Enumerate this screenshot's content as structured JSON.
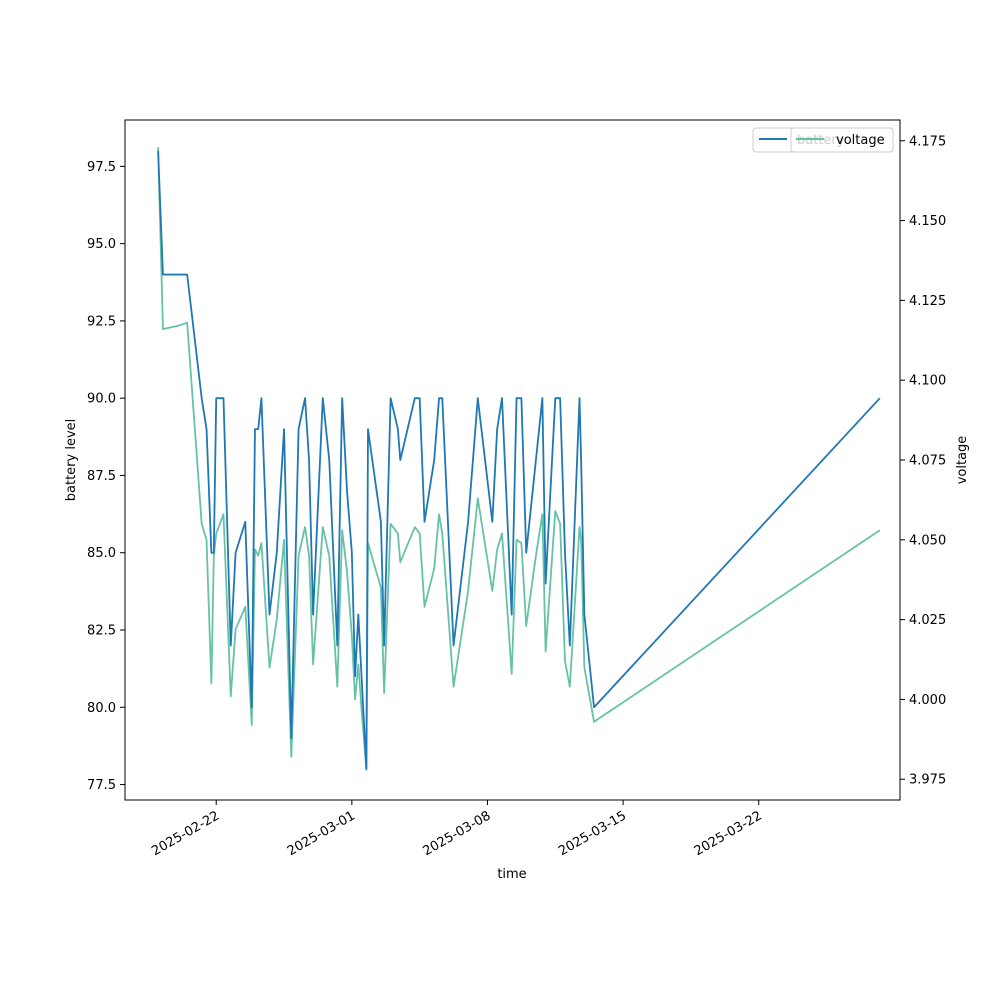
{
  "chart_data": {
    "type": "line",
    "title": "",
    "xlabel": "time",
    "ylabel_left": "battery level",
    "ylabel_right": "voltage",
    "x_ticks": [
      "2025-02-22",
      "2025-03-01",
      "2025-03-08",
      "2025-03-15",
      "2025-03-22"
    ],
    "y_left_ticks": [
      "77.5",
      "80.0",
      "82.5",
      "85.0",
      "87.5",
      "90.0",
      "92.5",
      "95.0",
      "97.5"
    ],
    "y_right_ticks": [
      "3.975",
      "4.000",
      "4.025",
      "4.050",
      "4.075",
      "4.100",
      "4.125",
      "4.150",
      "4.175"
    ],
    "ylim_left": [
      77.0,
      99.0
    ],
    "ylim_right": [
      3.9685,
      4.1815
    ],
    "xlim": [
      "2025-02-17 07:00",
      "2025-03-29 07:00"
    ],
    "legend_placement": "top-right",
    "grid": false,
    "series": [
      {
        "name": "battery",
        "axis": "left",
        "color": "#1f77b4",
        "points": [
          [
            "2025-02-19 00:00",
            98.0
          ],
          [
            "2025-02-19 06:00",
            94.0
          ],
          [
            "2025-02-20 00:00",
            94.0
          ],
          [
            "2025-02-20 12:00",
            94.0
          ],
          [
            "2025-02-21 06:00",
            90.0
          ],
          [
            "2025-02-21 12:00",
            89.0
          ],
          [
            "2025-02-21 18:00",
            85.0
          ],
          [
            "2025-02-21 21:00",
            85.0
          ],
          [
            "2025-02-22 00:00",
            90.0
          ],
          [
            "2025-02-22 09:00",
            90.0
          ],
          [
            "2025-02-22 18:00",
            82.0
          ],
          [
            "2025-02-23 00:00",
            85.0
          ],
          [
            "2025-02-23 12:00",
            86.0
          ],
          [
            "2025-02-23 20:00",
            80.0
          ],
          [
            "2025-02-24 00:00",
            89.0
          ],
          [
            "2025-02-24 04:00",
            89.0
          ],
          [
            "2025-02-24 08:00",
            90.0
          ],
          [
            "2025-02-24 18:00",
            83.0
          ],
          [
            "2025-02-25 03:00",
            85.0
          ],
          [
            "2025-02-25 12:00",
            89.0
          ],
          [
            "2025-02-25 21:00",
            79.0
          ],
          [
            "2025-02-26 06:00",
            89.0
          ],
          [
            "2025-02-26 14:00",
            90.0
          ],
          [
            "2025-02-26 19:00",
            88.0
          ],
          [
            "2025-02-27 00:00",
            83.0
          ],
          [
            "2025-02-27 12:00",
            90.0
          ],
          [
            "2025-02-27 20:00",
            88.0
          ],
          [
            "2025-02-28 06:00",
            82.0
          ],
          [
            "2025-02-28 12:00",
            90.0
          ],
          [
            "2025-02-28 18:00",
            87.0
          ],
          [
            "2025-02-29 00:00",
            85.0
          ],
          [
            "2025-02-29 04:00",
            81.0
          ],
          [
            "2025-02-29 08:00",
            83.0
          ],
          [
            "2025-03-01 12:00",
            81.0
          ],
          [
            "2025-03-01 18:00",
            78.0
          ],
          [
            "2025-03-01 20:00",
            89.0
          ],
          [
            "2025-03-02 12:00",
            86.0
          ],
          [
            "2025-03-02 16:00",
            82.0
          ],
          [
            "2025-03-03 00:00",
            90.0
          ],
          [
            "2025-03-03 09:00",
            89.0
          ],
          [
            "2025-03-03 12:00",
            88.0
          ],
          [
            "2025-03-04 06:00",
            90.0
          ],
          [
            "2025-03-04 12:00",
            90.0
          ],
          [
            "2025-03-04 18:00",
            86.0
          ],
          [
            "2025-03-05 06:00",
            88.0
          ],
          [
            "2025-03-05 12:00",
            90.0
          ],
          [
            "2025-03-05 16:00",
            90.0
          ],
          [
            "2025-03-06 06:00",
            82.0
          ],
          [
            "2025-03-07 00:00",
            86.0
          ],
          [
            "2025-03-07 12:00",
            90.0
          ],
          [
            "2025-03-08 06:00",
            86.0
          ],
          [
            "2025-03-08 12:00",
            89.0
          ],
          [
            "2025-03-08 18:00",
            90.0
          ],
          [
            "2025-03-09 06:00",
            83.0
          ],
          [
            "2025-03-09 12:00",
            90.0
          ],
          [
            "2025-03-09 18:00",
            90.0
          ],
          [
            "2025-03-10 00:00",
            85.0
          ],
          [
            "2025-03-10 12:00",
            88.0
          ],
          [
            "2025-03-10 20:00",
            90.0
          ],
          [
            "2025-03-11 00:00",
            84.0
          ],
          [
            "2025-03-11 12:00",
            90.0
          ],
          [
            "2025-03-11 18:00",
            90.0
          ],
          [
            "2025-03-12 00:00",
            85.0
          ],
          [
            "2025-03-12 06:00",
            82.0
          ],
          [
            "2025-03-12 18:00",
            90.0
          ],
          [
            "2025-03-12 20:00",
            88.0
          ],
          [
            "2025-03-13 00:00",
            83.0
          ],
          [
            "2025-03-13 12:00",
            80.0
          ],
          [
            "2025-03-28 06:00",
            90.0
          ]
        ]
      },
      {
        "name": "voltage",
        "axis": "right",
        "color": "#66c2a5",
        "points": [
          [
            "2025-02-19 00:00",
            4.173
          ],
          [
            "2025-02-19 06:00",
            4.116
          ],
          [
            "2025-02-20 00:00",
            4.117
          ],
          [
            "2025-02-20 12:00",
            4.118
          ],
          [
            "2025-02-21 06:00",
            4.055
          ],
          [
            "2025-02-21 12:00",
            4.05
          ],
          [
            "2025-02-21 18:00",
            4.005
          ],
          [
            "2025-02-21 21:00",
            4.045
          ],
          [
            "2025-02-22 00:00",
            4.052
          ],
          [
            "2025-02-22 09:00",
            4.058
          ],
          [
            "2025-02-22 18:00",
            4.001
          ],
          [
            "2025-02-23 00:00",
            4.022
          ],
          [
            "2025-02-23 12:00",
            4.029
          ],
          [
            "2025-02-23 20:00",
            3.992
          ],
          [
            "2025-02-24 00:00",
            4.047
          ],
          [
            "2025-02-24 04:00",
            4.045
          ],
          [
            "2025-02-24 08:00",
            4.049
          ],
          [
            "2025-02-24 18:00",
            4.01
          ],
          [
            "2025-02-25 03:00",
            4.025
          ],
          [
            "2025-02-25 12:00",
            4.05
          ],
          [
            "2025-02-25 21:00",
            3.982
          ],
          [
            "2025-02-26 06:00",
            4.045
          ],
          [
            "2025-02-26 14:00",
            4.054
          ],
          [
            "2025-02-26 19:00",
            4.045
          ],
          [
            "2025-02-27 00:00",
            4.011
          ],
          [
            "2025-02-27 12:00",
            4.054
          ],
          [
            "2025-02-27 20:00",
            4.045
          ],
          [
            "2025-02-28 06:00",
            4.004
          ],
          [
            "2025-02-28 12:00",
            4.053
          ],
          [
            "2025-02-28 18:00",
            4.04
          ],
          [
            "2025-02-29 00:00",
            4.02
          ],
          [
            "2025-02-29 04:00",
            4.0
          ],
          [
            "2025-02-29 08:00",
            4.011
          ],
          [
            "2025-03-01 12:00",
            3.997
          ],
          [
            "2025-03-01 18:00",
            3.978
          ],
          [
            "2025-03-01 20:00",
            4.049
          ],
          [
            "2025-03-02 12:00",
            4.035
          ],
          [
            "2025-03-02 16:00",
            4.002
          ],
          [
            "2025-03-03 00:00",
            4.055
          ],
          [
            "2025-03-03 09:00",
            4.052
          ],
          [
            "2025-03-03 12:00",
            4.043
          ],
          [
            "2025-03-04 06:00",
            4.054
          ],
          [
            "2025-03-04 12:00",
            4.052
          ],
          [
            "2025-03-04 18:00",
            4.029
          ],
          [
            "2025-03-05 06:00",
            4.041
          ],
          [
            "2025-03-05 12:00",
            4.058
          ],
          [
            "2025-03-05 16:00",
            4.052
          ],
          [
            "2025-03-06 06:00",
            4.004
          ],
          [
            "2025-03-07 00:00",
            4.034
          ],
          [
            "2025-03-07 12:00",
            4.063
          ],
          [
            "2025-03-08 06:00",
            4.034
          ],
          [
            "2025-03-08 12:00",
            4.047
          ],
          [
            "2025-03-08 18:00",
            4.052
          ],
          [
            "2025-03-09 06:00",
            4.008
          ],
          [
            "2025-03-09 12:00",
            4.05
          ],
          [
            "2025-03-09 18:00",
            4.049
          ],
          [
            "2025-03-10 00:00",
            4.023
          ],
          [
            "2025-03-10 12:00",
            4.045
          ],
          [
            "2025-03-10 20:00",
            4.058
          ],
          [
            "2025-03-11 00:00",
            4.015
          ],
          [
            "2025-03-11 12:00",
            4.059
          ],
          [
            "2025-03-11 18:00",
            4.055
          ],
          [
            "2025-03-12 00:00",
            4.012
          ],
          [
            "2025-03-12 06:00",
            4.004
          ],
          [
            "2025-03-12 18:00",
            4.054
          ],
          [
            "2025-03-12 20:00",
            4.05
          ],
          [
            "2025-03-13 00:00",
            4.01
          ],
          [
            "2025-03-13 12:00",
            3.993
          ],
          [
            "2025-03-28 06:00",
            4.053
          ]
        ]
      }
    ]
  }
}
